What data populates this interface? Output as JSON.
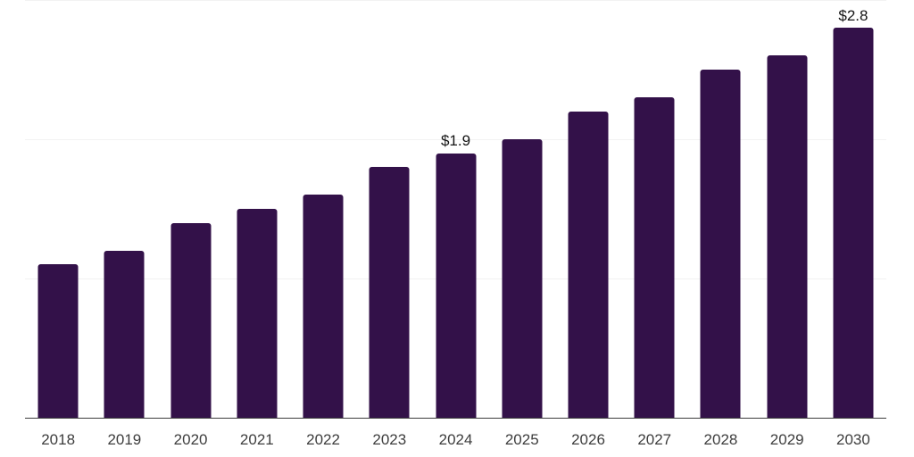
{
  "chart_data": {
    "type": "bar",
    "categories": [
      "2018",
      "2019",
      "2020",
      "2021",
      "2022",
      "2023",
      "2024",
      "2025",
      "2026",
      "2027",
      "2028",
      "2029",
      "2030"
    ],
    "values": [
      1.1,
      1.2,
      1.4,
      1.5,
      1.6,
      1.8,
      1.9,
      2.0,
      2.2,
      2.3,
      2.5,
      2.6,
      2.8
    ],
    "points": [
      {
        "year": "2018",
        "value": 1.1
      },
      {
        "year": "2019",
        "value": 1.2
      },
      {
        "year": "2020",
        "value": 1.4
      },
      {
        "year": "2021",
        "value": 1.5
      },
      {
        "year": "2022",
        "value": 1.6
      },
      {
        "year": "2023",
        "value": 1.8
      },
      {
        "year": "2024",
        "value": 1.9,
        "label": "$1.9"
      },
      {
        "year": "2025",
        "value": 2.0
      },
      {
        "year": "2026",
        "value": 2.2
      },
      {
        "year": "2027",
        "value": 2.3
      },
      {
        "year": "2028",
        "value": 2.5
      },
      {
        "year": "2029",
        "value": 2.6
      },
      {
        "year": "2030",
        "value": 2.8,
        "label": "$2.8"
      }
    ],
    "visible_value_labels": {
      "2024": "$1.9",
      "2030": "$2.8"
    },
    "ylim": [
      0,
      3
    ],
    "gridline_values": [
      1,
      2,
      3
    ],
    "grid": "horizontal-only",
    "legend": "none",
    "xlabel": "",
    "ylabel": "",
    "colors": {
      "bar": "#331149",
      "axis": "#3d3d3d",
      "gridline": "#f2f2f2",
      "tick_label": "#3d3d3d",
      "value_label": "#141414",
      "background": "#ffffff"
    }
  }
}
